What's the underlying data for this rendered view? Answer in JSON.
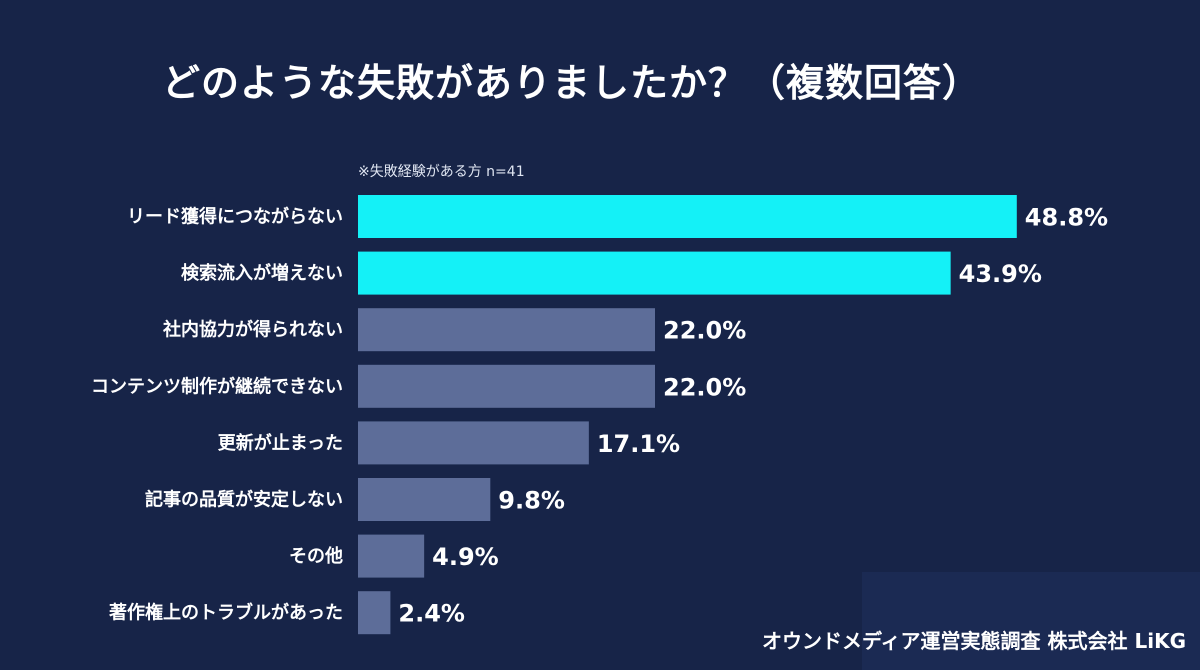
{
  "title": "どのような失敗がありましたか？（複数回答）",
  "note": "※失敗経験がある方 n=41",
  "footer": "オウンドメディア運営実態調査  株式会社 LiKG",
  "colors": {
    "background": "#172448",
    "highlight_bar": "#14f1f7",
    "normal_bar": "#5d6d99"
  },
  "chart_data": {
    "type": "bar",
    "orientation": "horizontal",
    "categories": [
      "リード獲得につながらない",
      "検索流入が増えない",
      "社内協力が得られない",
      "コンテンツ制作が継続できない",
      "更新が止まった",
      "記事の品質が安定しない",
      "その他",
      "著作権上のトラブルがあった"
    ],
    "values": [
      48.8,
      43.9,
      22.0,
      22.0,
      17.1,
      9.8,
      4.9,
      2.4
    ],
    "value_labels": [
      "48.8%",
      "43.9%",
      "22.0%",
      "22.0%",
      "17.1%",
      "9.8%",
      "4.9%",
      "2.4%"
    ],
    "highlighted": [
      true,
      true,
      false,
      false,
      false,
      false,
      false,
      false
    ],
    "xlim": [
      0,
      100
    ],
    "grid": false,
    "legend": "none"
  }
}
